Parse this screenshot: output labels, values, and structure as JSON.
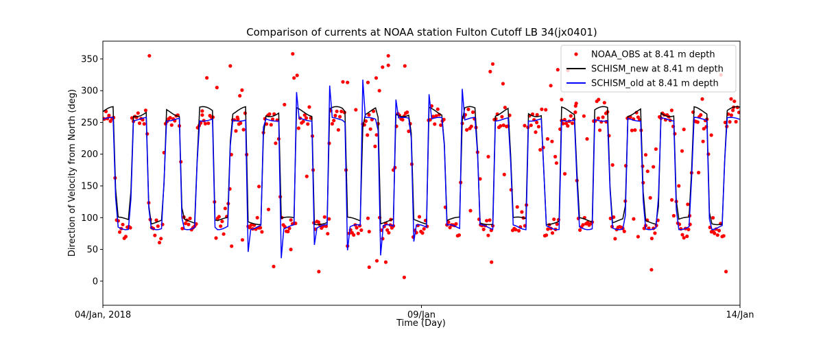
{
  "chart_data": {
    "type": "line",
    "title": "Comparison of currents at NOAA station Fulton Cutoff LB 34(jx0401)",
    "xlabel": "Time (Day)",
    "ylabel": "Direction of Velocity from North (deg)",
    "xlim": [
      0,
      10
    ],
    "ylim": [
      -38,
      378
    ],
    "x_ticks": [
      {
        "value": 0,
        "label": "04/Jan, 2018"
      },
      {
        "value": 5,
        "label": "09/Jan"
      },
      {
        "value": 10,
        "label": "14/Jan"
      }
    ],
    "y_ticks": [
      0,
      50,
      100,
      150,
      200,
      250,
      300,
      350
    ],
    "legend_position": "top-right",
    "series": [
      {
        "name": "NOAA_OBS at 8.41 m depth",
        "style": "scatter",
        "color": "#ff0000"
      },
      {
        "name": "SCHISM_new at 8.41 m depth",
        "style": "line",
        "color": "#000000"
      },
      {
        "name": "SCHISM_old at 8.41 m depth",
        "style": "line",
        "color": "#0000ff"
      }
    ],
    "cycle_period_days": 0.5175,
    "high_phase_deg": 255,
    "low_phase_deg": 85,
    "obs_outliers": [
      {
        "x": 0.73,
        "y": 355
      },
      {
        "x": 2.0,
        "y": 339
      },
      {
        "x": 1.56,
        "y": 268
      },
      {
        "x": 2.02,
        "y": 55
      },
      {
        "x": 2.12,
        "y": 255
      },
      {
        "x": 2.15,
        "y": 292
      },
      {
        "x": 2.19,
        "y": 65
      },
      {
        "x": 2.45,
        "y": 149
      },
      {
        "x": 2.6,
        "y": 113
      },
      {
        "x": 1.79,
        "y": 305
      },
      {
        "x": 2.85,
        "y": 278
      },
      {
        "x": 2.98,
        "y": 358
      },
      {
        "x": 3.0,
        "y": 320
      },
      {
        "x": 2.68,
        "y": 23
      },
      {
        "x": 2.95,
        "y": 50
      },
      {
        "x": 3.55,
        "y": 98
      },
      {
        "x": 3.39,
        "y": 15
      },
      {
        "x": 3.84,
        "y": 313
      },
      {
        "x": 3.97,
        "y": 270
      },
      {
        "x": 4.16,
        "y": 99
      },
      {
        "x": 4.16,
        "y": 313
      },
      {
        "x": 4.29,
        "y": 320
      },
      {
        "x": 4.34,
        "y": 300
      },
      {
        "x": 4.18,
        "y": 78
      },
      {
        "x": 4.18,
        "y": 22
      },
      {
        "x": 4.3,
        "y": 32
      },
      {
        "x": 4.44,
        "y": 30
      },
      {
        "x": 4.48,
        "y": 355
      },
      {
        "x": 4.48,
        "y": 340
      },
      {
        "x": 4.39,
        "y": 337
      },
      {
        "x": 3.2,
        "y": 165
      },
      {
        "x": 3.3,
        "y": 175
      },
      {
        "x": 4.56,
        "y": 175
      },
      {
        "x": 4.73,
        "y": 6
      },
      {
        "x": 4.74,
        "y": 339
      },
      {
        "x": 4.52,
        "y": 97
      },
      {
        "x": 5.77,
        "y": 111
      },
      {
        "x": 5.92,
        "y": 161
      },
      {
        "x": 6.28,
        "y": 311
      },
      {
        "x": 6.1,
        "y": 30
      },
      {
        "x": 6.08,
        "y": 330
      },
      {
        "x": 6.12,
        "y": 342
      },
      {
        "x": 6.05,
        "y": 196
      },
      {
        "x": 6.3,
        "y": 168
      },
      {
        "x": 6.62,
        "y": 245
      },
      {
        "x": 6.81,
        "y": 250
      },
      {
        "x": 6.95,
        "y": 270
      },
      {
        "x": 6.98,
        "y": 224
      },
      {
        "x": 7.03,
        "y": 308
      },
      {
        "x": 7.05,
        "y": 220
      },
      {
        "x": 7.12,
        "y": 186
      },
      {
        "x": 7.14,
        "y": 333
      },
      {
        "x": 7.2,
        "y": 286
      },
      {
        "x": 7.3,
        "y": 332
      },
      {
        "x": 7.42,
        "y": 276
      },
      {
        "x": 7.43,
        "y": 280
      },
      {
        "x": 7.55,
        "y": 260
      },
      {
        "x": 7.6,
        "y": 224
      },
      {
        "x": 7.1,
        "y": 196
      },
      {
        "x": 7.25,
        "y": 169
      },
      {
        "x": 7.78,
        "y": 286
      },
      {
        "x": 7.9,
        "y": 251
      },
      {
        "x": 8.0,
        "y": 183
      },
      {
        "x": 8.2,
        "y": 126
      },
      {
        "x": 8.33,
        "y": 98
      },
      {
        "x": 8.4,
        "y": 70
      },
      {
        "x": 8.52,
        "y": 199
      },
      {
        "x": 8.48,
        "y": 155
      },
      {
        "x": 8.55,
        "y": 173
      },
      {
        "x": 8.61,
        "y": 18
      },
      {
        "x": 8.64,
        "y": 180
      },
      {
        "x": 8.68,
        "y": 208
      },
      {
        "x": 8.93,
        "y": 128
      },
      {
        "x": 8.96,
        "y": 103
      },
      {
        "x": 9.04,
        "y": 150
      },
      {
        "x": 9.09,
        "y": 205
      },
      {
        "x": 9.12,
        "y": 239
      },
      {
        "x": 9.18,
        "y": 121
      },
      {
        "x": 9.21,
        "y": 103
      },
      {
        "x": 9.35,
        "y": 171
      },
      {
        "x": 9.42,
        "y": 220
      },
      {
        "x": 9.47,
        "y": 243
      },
      {
        "x": 9.55,
        "y": 230
      },
      {
        "x": 9.58,
        "y": 78
      },
      {
        "x": 9.7,
        "y": 325
      },
      {
        "x": 9.78,
        "y": 15
      },
      {
        "x": 9.86,
        "y": 287
      },
      {
        "x": 9.9,
        "y": 274
      }
    ]
  }
}
